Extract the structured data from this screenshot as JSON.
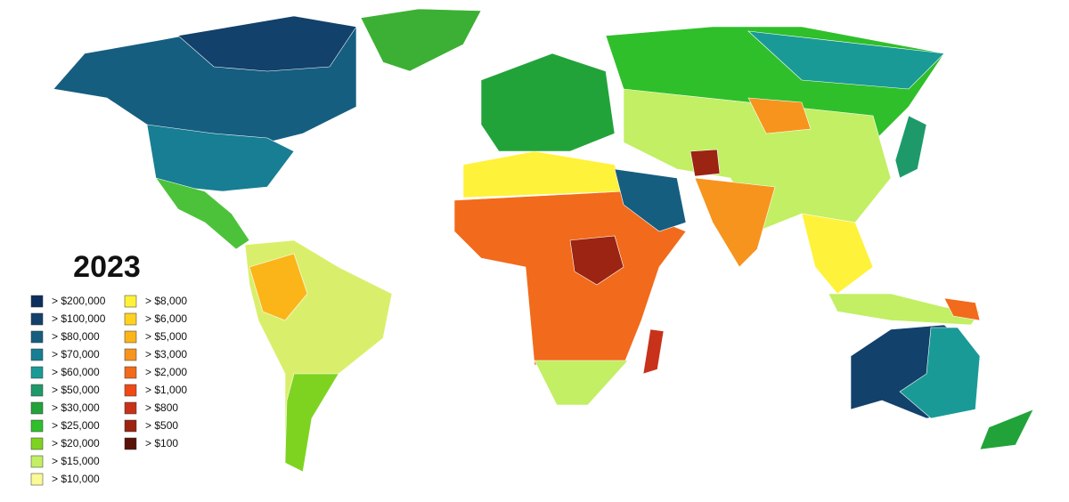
{
  "title": "2023",
  "legend": [
    {
      "label": "> $200,000",
      "color": "#0d2f5e"
    },
    {
      "label": "> $100,000",
      "color": "#12416b"
    },
    {
      "label": "> $80,000",
      "color": "#155e80"
    },
    {
      "label": "> $70,000",
      "color": "#177e93"
    },
    {
      "label": "> $60,000",
      "color": "#1a9a96"
    },
    {
      "label": "> $50,000",
      "color": "#1e9a6a"
    },
    {
      "label": "> $30,000",
      "color": "#22a33a"
    },
    {
      "label": "> $25,000",
      "color": "#2fbf2a"
    },
    {
      "label": "> $20,000",
      "color": "#7ed321"
    },
    {
      "label": "> $15,000",
      "color": "#c2ef63"
    },
    {
      "label": "> $10,000",
      "color": "#fafa96"
    },
    {
      "label": "> $8,000",
      "color": "#fff23a"
    },
    {
      "label": "> $6,000",
      "color": "#ffd21f"
    },
    {
      "label": "> $5,000",
      "color": "#fbb518"
    },
    {
      "label": "> $3,000",
      "color": "#f7941d"
    },
    {
      "label": "> $2,000",
      "color": "#f26a1b"
    },
    {
      "label": "> $1,000",
      "color": "#ef4a16"
    },
    {
      "label": "> $800",
      "color": "#c8321a"
    },
    {
      "label": "> $500",
      "color": "#9b2412"
    },
    {
      "label": "> $100",
      "color": "#5a1208"
    }
  ]
}
